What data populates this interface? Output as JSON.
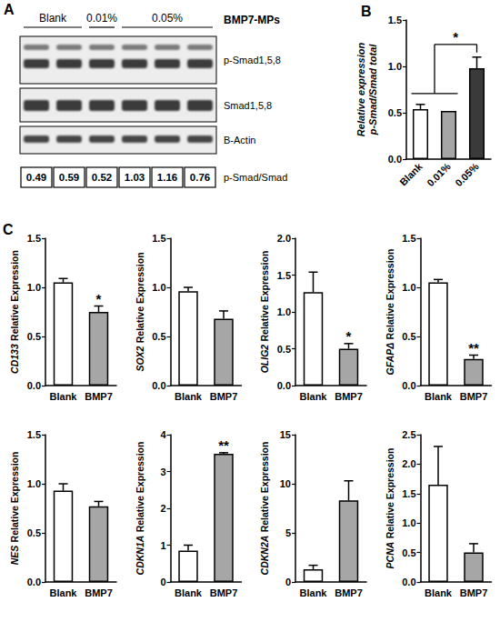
{
  "blot": {
    "panel_label": "A",
    "treatment_label": "BMP7-MPs",
    "lane_groups": [
      {
        "label": "Blank",
        "lanes": 2
      },
      {
        "label": "0.01%",
        "lanes": 1
      },
      {
        "label": "0.05%",
        "lanes": 3
      }
    ],
    "rows": [
      "p-Smad1,5,8",
      "Smad1,5,8",
      "B-Actin"
    ],
    "ratio_label": "p-Smad/Smad",
    "ratios": [
      0.49,
      0.59,
      0.52,
      1.03,
      1.16,
      0.76
    ]
  },
  "chart_data": [
    {
      "type": "bar",
      "panel_label": "B",
      "ylabel": "Relative expression\np-Smad/Smad total",
      "categories": [
        "Blank",
        "0.01%",
        "0.05%"
      ],
      "values": [
        0.54,
        0.52,
        0.98
      ],
      "errors": [
        0.05,
        null,
        0.12
      ],
      "colors": [
        "#ffffff",
        "#a6a6a6",
        "#3a3a3a"
      ],
      "ylim": [
        0,
        1.5
      ],
      "yticks": [
        {
          "value": 0,
          "label": "0.0"
        },
        0.5,
        {
          "value": 1,
          "label": "1.0"
        },
        1.5
      ],
      "grid": false,
      "annotations": [
        {
          "text": "*",
          "from": [
            "Blank",
            "0.01%"
          ],
          "to": "0.05%"
        }
      ]
    },
    {
      "type": "bar",
      "panel_label": "C",
      "gene": "CD133",
      "ylabel": "Relative Expression",
      "categories": [
        "Blank",
        "BMP7"
      ],
      "values": [
        1.05,
        0.75
      ],
      "errors": [
        0.04,
        0.06
      ],
      "colors": [
        "#ffffff",
        "#a6a6a6"
      ],
      "ylim": [
        0,
        1.5
      ],
      "yticks": [
        {
          "value": 0,
          "label": "0.0"
        },
        0.5,
        {
          "value": 1,
          "label": "1.0"
        },
        1.5
      ],
      "grid": false,
      "annotations": [
        {
          "text": "*",
          "category": "BMP7"
        }
      ]
    },
    {
      "type": "bar",
      "gene": "SOX2",
      "ylabel": "Relative Expression",
      "categories": [
        "Blank",
        "BMP7"
      ],
      "values": [
        0.96,
        0.68
      ],
      "errors": [
        0.04,
        0.08
      ],
      "colors": [
        "#ffffff",
        "#a6a6a6"
      ],
      "ylim": [
        0,
        1.5
      ],
      "yticks": [
        {
          "value": 0,
          "label": "0.0"
        },
        0.5,
        {
          "value": 1,
          "label": "1.0"
        },
        1.5
      ],
      "grid": false
    },
    {
      "type": "bar",
      "gene": "OLIG2",
      "ylabel": "Relative Expression",
      "categories": [
        "Blank",
        "BMP7"
      ],
      "values": [
        1.27,
        0.5
      ],
      "errors": [
        0.27,
        0.07
      ],
      "colors": [
        "#ffffff",
        "#a6a6a6"
      ],
      "ylim": [
        0,
        2
      ],
      "yticks": [
        {
          "value": 0,
          "label": "0.0"
        },
        0.5,
        {
          "value": 1,
          "label": "1.0"
        },
        1.5,
        {
          "value": 2,
          "label": "2.0"
        }
      ],
      "grid": false,
      "annotations": [
        {
          "text": "*",
          "category": "BMP7"
        }
      ]
    },
    {
      "type": "bar",
      "gene": "GFAPΔ",
      "ylabel": "Relative Expression",
      "categories": [
        "Blank",
        "BMP7"
      ],
      "values": [
        1.05,
        0.27
      ],
      "errors": [
        0.03,
        0.04
      ],
      "colors": [
        "#ffffff",
        "#a6a6a6"
      ],
      "ylim": [
        0,
        1.5
      ],
      "yticks": [
        {
          "value": 0,
          "label": "0.0"
        },
        0.5,
        {
          "value": 1,
          "label": "1.0"
        },
        1.5
      ],
      "grid": false,
      "annotations": [
        {
          "text": "**",
          "category": "BMP7"
        }
      ]
    },
    {
      "type": "bar",
      "gene": "NES",
      "ylabel": "Relative Expression",
      "categories": [
        "Blank",
        "BMP7"
      ],
      "values": [
        0.93,
        0.77
      ],
      "errors": [
        0.07,
        0.05
      ],
      "colors": [
        "#ffffff",
        "#a6a6a6"
      ],
      "ylim": [
        0,
        1.5
      ],
      "yticks": [
        {
          "value": 0,
          "label": "0.0"
        },
        0.5,
        {
          "value": 1,
          "label": "1.0"
        },
        1.5
      ],
      "grid": false
    },
    {
      "type": "bar",
      "gene": "CDKN1A",
      "ylabel": "Relative Expression",
      "categories": [
        "Blank",
        "BMP7"
      ],
      "values": [
        0.85,
        3.48
      ],
      "errors": [
        0.15,
        0.03
      ],
      "colors": [
        "#ffffff",
        "#a6a6a6"
      ],
      "ylim": [
        0,
        4
      ],
      "yticks": [
        0,
        1,
        2,
        3,
        4
      ],
      "grid": false,
      "annotations": [
        {
          "text": "**",
          "category": "BMP7"
        }
      ]
    },
    {
      "type": "bar",
      "gene": "CDKN2A",
      "ylabel": "Relative Expression",
      "categories": [
        "Blank",
        "BMP7"
      ],
      "values": [
        1.3,
        8.3
      ],
      "errors": [
        0.4,
        2.0
      ],
      "colors": [
        "#ffffff",
        "#a6a6a6"
      ],
      "ylim": [
        0,
        15
      ],
      "yticks": [
        0,
        5,
        10,
        15
      ],
      "grid": false
    },
    {
      "type": "bar",
      "gene": "PCNA",
      "ylabel": "Relative Expression",
      "categories": [
        "Blank",
        "BMP7"
      ],
      "values": [
        1.65,
        0.5
      ],
      "errors": [
        0.65,
        0.15
      ],
      "colors": [
        "#ffffff",
        "#a6a6a6"
      ],
      "ylim": [
        0,
        2.5
      ],
      "yticks": [
        {
          "value": 0,
          "label": "0.0"
        },
        0.5,
        {
          "value": 1,
          "label": "1.0"
        },
        1.5,
        {
          "value": 2,
          "label": "2.0"
        },
        2.5
      ],
      "grid": false
    }
  ]
}
